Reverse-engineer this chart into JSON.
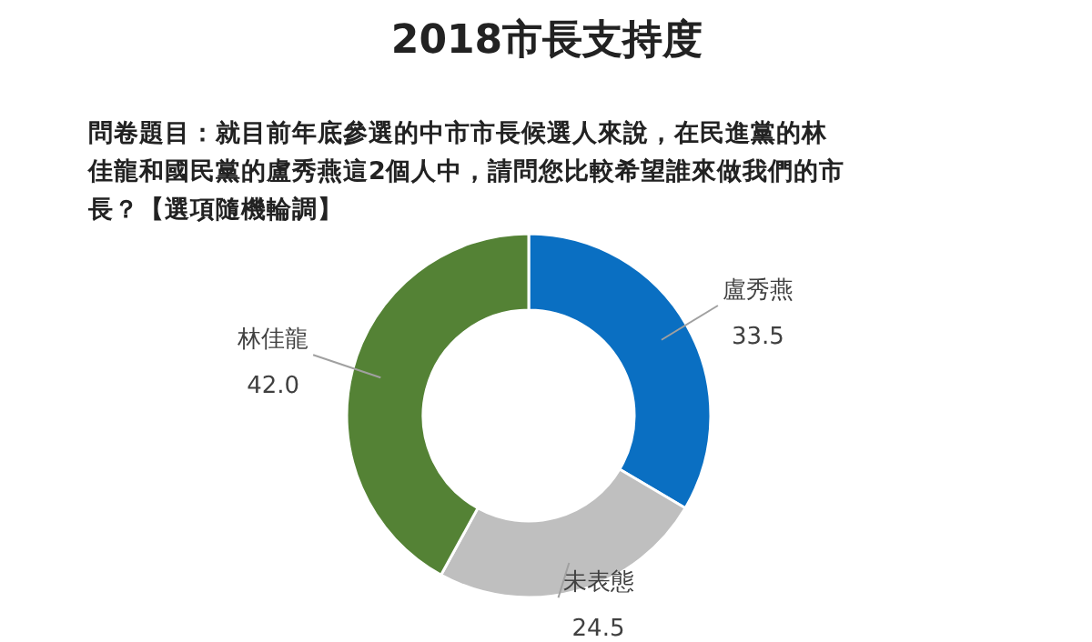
{
  "chart_data": {
    "type": "donut",
    "title": "2018市長支持度",
    "subtitle": "問卷題目：就目前年底參選的中市市長候選人來說，在民進黨的林佳龍和國民黨的盧秀燕這2個人中，請問您比較希望誰來做我們的市長？【選項隨機輪調】",
    "categories": [
      "盧秀燕",
      "未表態",
      "林佳龍"
    ],
    "values": [
      33.5,
      24.5,
      42.0
    ],
    "value_labels": [
      "33.5",
      "24.5",
      "42.0"
    ],
    "colors": [
      "#0a6fc2",
      "#bfbfbf",
      "#548235"
    ]
  }
}
